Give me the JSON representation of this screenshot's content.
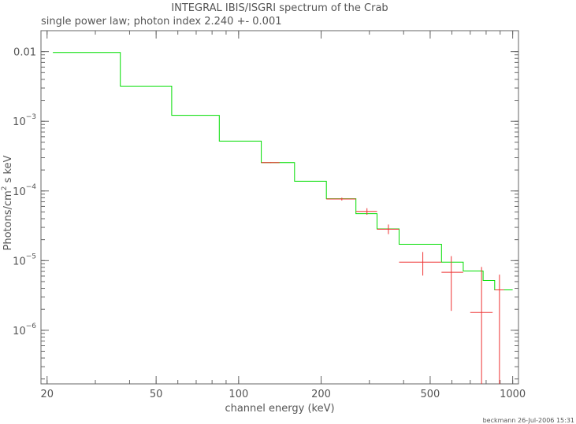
{
  "footer": "beckmann 26-Jul-2006 15:31",
  "colors": {
    "model": "#00dd00",
    "data": "#ee3333",
    "axis": "#666666"
  },
  "chart_data": {
    "type": "line",
    "title": "INTEGRAL IBIS/ISGRI spectrum of the Crab",
    "subtitle": "single power law; photon index 2.240 +- 0.001",
    "xlabel": "channel energy (keV)",
    "ylabel": "Photons/cm^2 s keV",
    "xscale": "log",
    "yscale": "log",
    "xlim": [
      19,
      1050
    ],
    "ylim": [
      1.7e-07,
      0.02
    ],
    "xticks": [
      {
        "value": 20,
        "label": "20"
      },
      {
        "value": 50,
        "label": "50"
      },
      {
        "value": 100,
        "label": "100"
      },
      {
        "value": 200,
        "label": "200"
      },
      {
        "value": 500,
        "label": "500"
      },
      {
        "value": 1000,
        "label": "1000"
      }
    ],
    "yticks": [
      {
        "value": 0.01,
        "base": "0.01",
        "exp": ""
      },
      {
        "value": 0.001,
        "base": "10",
        "exp": "−3"
      },
      {
        "value": 0.0001,
        "base": "10",
        "exp": "−4"
      },
      {
        "value": 1e-05,
        "base": "10",
        "exp": "−5"
      },
      {
        "value": 1e-06,
        "base": "10",
        "exp": "−6"
      }
    ],
    "model_bins": [
      {
        "x0": 21,
        "x1": 37,
        "y": 0.0097
      },
      {
        "x0": 37,
        "x1": 57,
        "y": 0.0032
      },
      {
        "x0": 57,
        "x1": 85,
        "y": 0.00122
      },
      {
        "x0": 85,
        "x1": 121,
        "y": 0.00052
      },
      {
        "x0": 121,
        "x1": 160,
        "y": 0.000255
      },
      {
        "x0": 160,
        "x1": 209,
        "y": 0.000138
      },
      {
        "x0": 209,
        "x1": 268,
        "y": 7.75e-05
      },
      {
        "x0": 268,
        "x1": 320,
        "y": 4.72e-05
      },
      {
        "x0": 320,
        "x1": 385,
        "y": 2.85e-05
      },
      {
        "x0": 385,
        "x1": 550,
        "y": 1.72e-05
      },
      {
        "x0": 550,
        "x1": 660,
        "y": 9.5e-06
      },
      {
        "x0": 660,
        "x1": 780,
        "y": 7.1e-06
      },
      {
        "x0": 780,
        "x1": 860,
        "y": 5.2e-06
      },
      {
        "x0": 860,
        "x1": 1000,
        "y": 3.8e-06
      }
    ],
    "data_points": [
      {
        "x": 131,
        "xlo": 121,
        "xhi": 141,
        "y": 0.000255,
        "ylo": 0.000252,
        "yhi": 0.000258
      },
      {
        "x": 238,
        "xlo": 209,
        "xhi": 268,
        "y": 7.65e-05,
        "ylo": 7.3e-05,
        "yhi": 8e-05
      },
      {
        "x": 294,
        "xlo": 268,
        "xhi": 320,
        "y": 5.08e-05,
        "ylo": 4.55e-05,
        "yhi": 5.65e-05
      },
      {
        "x": 352,
        "xlo": 320,
        "xhi": 385,
        "y": 2.82e-05,
        "ylo": 2.4e-05,
        "yhi": 3.3e-05
      },
      {
        "x": 470,
        "xlo": 385,
        "xhi": 550,
        "y": 9.5e-06,
        "ylo": 6.1e-06,
        "yhi": 1.33e-05
      },
      {
        "x": 597,
        "xlo": 550,
        "xhi": 660,
        "y": 6.8e-06,
        "ylo": 1.9e-06,
        "yhi": 1.16e-05
      },
      {
        "x": 770,
        "xlo": 700,
        "xhi": 845,
        "y": 1.8e-06,
        "ylo": 1.7e-07,
        "yhi": 8.1e-06
      },
      {
        "x": 895,
        "xlo": 860,
        "xhi": 930,
        "y": 3.8e-06,
        "ylo": 1.7e-07,
        "yhi": 6.3e-06
      }
    ]
  }
}
